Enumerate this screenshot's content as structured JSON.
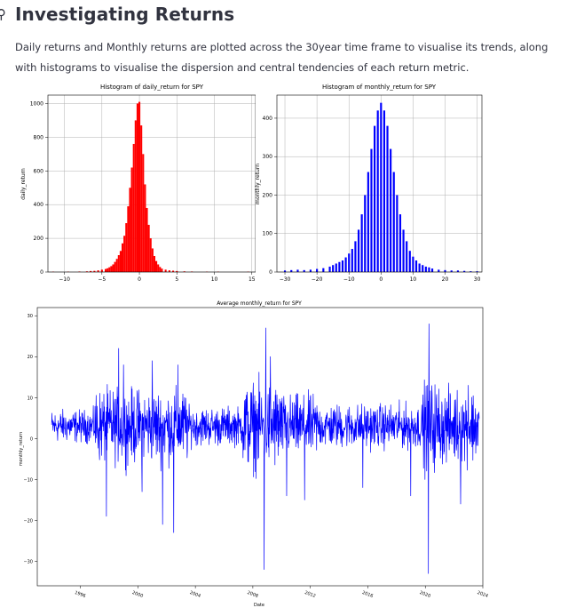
{
  "header": {
    "anchor_icon": "link-anchor-icon",
    "title": "Investigating Returns",
    "description": "Daily returns and Monthly returns are plotted across the 30year time frame to visualise its trends, along with histograms to visualise the dispersion and central tendencies of each return metric."
  },
  "chart_data": [
    {
      "type": "bar",
      "title": "Histogram of daily_return for SPY",
      "xlabel": "",
      "ylabel": "daily_return",
      "color": "#ff0000",
      "grid": true,
      "xlim": [
        -12.2,
        15.5
      ],
      "ylim": [
        0,
        1050
      ],
      "xticks": [
        -10,
        -5,
        0,
        5,
        10,
        15
      ],
      "yticks": [
        0,
        200,
        400,
        600,
        800,
        1000
      ],
      "bin_width": 0.25,
      "bins_x": [
        -11.5,
        -9.5,
        -8.0,
        -7.0,
        -6.5,
        -6.0,
        -5.5,
        -5.0,
        -4.5,
        -4.25,
        -4.0,
        -3.75,
        -3.5,
        -3.25,
        -3.0,
        -2.75,
        -2.5,
        -2.25,
        -2.0,
        -1.75,
        -1.5,
        -1.25,
        -1.0,
        -0.75,
        -0.5,
        -0.25,
        0.0,
        0.25,
        0.5,
        0.75,
        1.0,
        1.25,
        1.5,
        1.75,
        2.0,
        2.25,
        2.5,
        2.75,
        3.0,
        3.5,
        4.0,
        4.5,
        5.0,
        6.0,
        7.0,
        9.0,
        10.5,
        14.5
      ],
      "values": [
        2,
        2,
        3,
        4,
        6,
        7,
        10,
        14,
        18,
        22,
        28,
        35,
        45,
        60,
        78,
        100,
        125,
        170,
        215,
        290,
        390,
        500,
        620,
        760,
        900,
        1000,
        1010,
        870,
        700,
        520,
        380,
        280,
        200,
        140,
        95,
        65,
        45,
        30,
        20,
        14,
        10,
        8,
        6,
        4,
        3,
        2,
        2,
        2
      ]
    },
    {
      "type": "bar",
      "title": "Histogram of monthly_return for SPY",
      "xlabel": "",
      "ylabel": "monthly_return",
      "color": "#0000ff",
      "grid": true,
      "xlim": [
        -32.5,
        31.5
      ],
      "ylim": [
        0,
        460
      ],
      "xticks": [
        -30,
        -20,
        -10,
        0,
        10,
        20,
        30
      ],
      "yticks": [
        0,
        100,
        200,
        300,
        400
      ],
      "bin_width": 0.6,
      "bins_x": [
        -30,
        -28,
        -26,
        -24,
        -22,
        -20,
        -18,
        -16,
        -15,
        -14,
        -13,
        -12,
        -11,
        -10,
        -9,
        -8,
        -7,
        -6,
        -5,
        -4,
        -3,
        -2,
        -1,
        0,
        1,
        2,
        3,
        4,
        5,
        6,
        7,
        8,
        9,
        10,
        11,
        12,
        13,
        14,
        15,
        16,
        18,
        20,
        22,
        24,
        26,
        28,
        30
      ],
      "values": [
        4,
        5,
        6,
        5,
        6,
        8,
        10,
        14,
        18,
        22,
        26,
        30,
        38,
        48,
        60,
        80,
        110,
        150,
        200,
        260,
        320,
        380,
        420,
        440,
        420,
        380,
        320,
        260,
        200,
        150,
        110,
        80,
        55,
        40,
        30,
        22,
        18,
        14,
        12,
        9,
        6,
        5,
        4,
        4,
        3,
        2,
        2
      ]
    },
    {
      "type": "line",
      "title": "Average monthly_return for SPY",
      "xlabel": "Date",
      "ylabel": "monthly_return",
      "color": "#0000ff",
      "grid": false,
      "xlim": [
        "1993-01-01",
        "2024-01-01"
      ],
      "ylim": [
        -36,
        32
      ],
      "xticks": [
        "1996",
        "2000",
        "2004",
        "2008",
        "2012",
        "2016",
        "2020",
        "2024"
      ],
      "yticks": [
        -30,
        -20,
        -10,
        0,
        10,
        20,
        30
      ],
      "x_start": "1994-01-01",
      "x_end": "2023-09-30",
      "baseline": 3,
      "spikes": [
        {
          "x": "1997-10-27",
          "y": -19
        },
        {
          "x": "1998-08-31",
          "y": 22
        },
        {
          "x": "1999-01-01",
          "y": 18
        },
        {
          "x": "2000-04-14",
          "y": -13
        },
        {
          "x": "2001-01-03",
          "y": 19
        },
        {
          "x": "2001-09-17",
          "y": -21
        },
        {
          "x": "2002-07-01",
          "y": -23
        },
        {
          "x": "2002-10-15",
          "y": 18
        },
        {
          "x": "2008-10-15",
          "y": -32
        },
        {
          "x": "2008-11-24",
          "y": 27
        },
        {
          "x": "2009-03-23",
          "y": 20
        },
        {
          "x": "2010-05-06",
          "y": -14
        },
        {
          "x": "2011-08-08",
          "y": -15
        },
        {
          "x": "2015-08-24",
          "y": -12
        },
        {
          "x": "2018-12-24",
          "y": -14
        },
        {
          "x": "2020-03-16",
          "y": -33
        },
        {
          "x": "2020-04-06",
          "y": 28
        },
        {
          "x": "2022-06-13",
          "y": -16
        },
        {
          "x": "2023-01-01",
          "y": 13
        }
      ]
    }
  ]
}
